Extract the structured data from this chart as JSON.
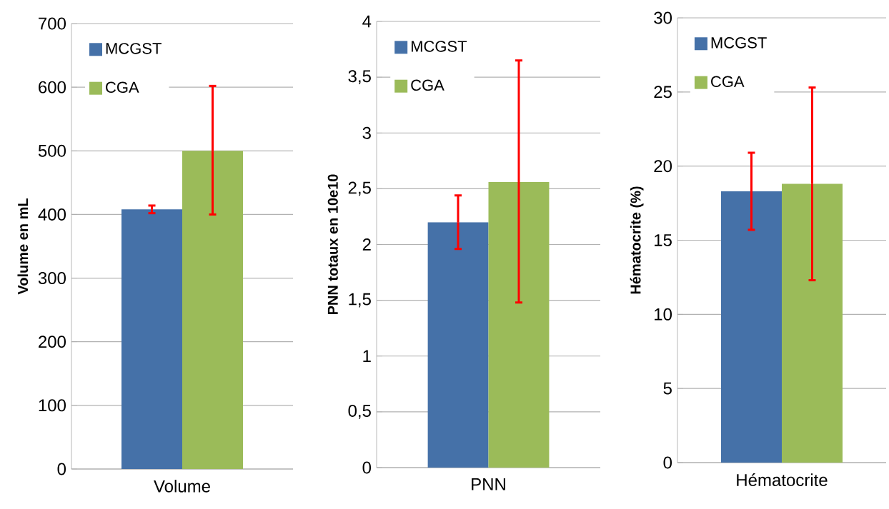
{
  "chart_data": [
    {
      "type": "bar",
      "categories": [
        "Volume"
      ],
      "ylabel": "Volume en mL",
      "ylim": [
        0,
        700
      ],
      "yticks": [
        0,
        100,
        200,
        300,
        400,
        500,
        600,
        700
      ],
      "grid": "y",
      "legend": "top left",
      "series": [
        {
          "name": "MCGST",
          "color": "#4571a8",
          "values": [
            408
          ],
          "errors": [
            [
              402,
              414
            ]
          ]
        },
        {
          "name": "CGA",
          "color": "#9bbb59",
          "values": [
            500
          ],
          "errors": [
            [
              400,
              602
            ]
          ]
        }
      ]
    },
    {
      "type": "bar",
      "categories": [
        "PNN"
      ],
      "ylabel": "PNN totaux  en 10e10",
      "ylim": [
        0,
        4
      ],
      "yticks": [
        0,
        {
          "value": 0.5,
          "label": "0,5"
        },
        1,
        {
          "value": 1.5,
          "label": "1,5"
        },
        2,
        {
          "value": 2.5,
          "label": "2,5"
        },
        3,
        {
          "value": 3.5,
          "label": "3,5"
        },
        4
      ],
      "grid": "y",
      "legend": "top left",
      "series": [
        {
          "name": "MCGST",
          "color": "#4571a8",
          "values": [
            2.2
          ],
          "errors": [
            [
              1.96,
              2.44
            ]
          ]
        },
        {
          "name": "CGA",
          "color": "#9bbb59",
          "values": [
            2.56
          ],
          "errors": [
            [
              1.48,
              3.65
            ]
          ]
        }
      ]
    },
    {
      "type": "bar",
      "categories": [
        "Hématocrite"
      ],
      "ylabel": "Hématocrite  (%)",
      "ylim": [
        0,
        30
      ],
      "yticks": [
        0,
        5,
        10,
        15,
        20,
        25,
        30
      ],
      "grid": "y",
      "legend": "top left",
      "series": [
        {
          "name": "MCGST",
          "color": "#4571a8",
          "values": [
            18.3
          ],
          "errors": [
            [
              15.7,
              20.9
            ]
          ]
        },
        {
          "name": "CGA",
          "color": "#9bbb59",
          "values": [
            18.8
          ],
          "errors": [
            [
              12.3,
              25.3
            ]
          ]
        }
      ]
    }
  ]
}
